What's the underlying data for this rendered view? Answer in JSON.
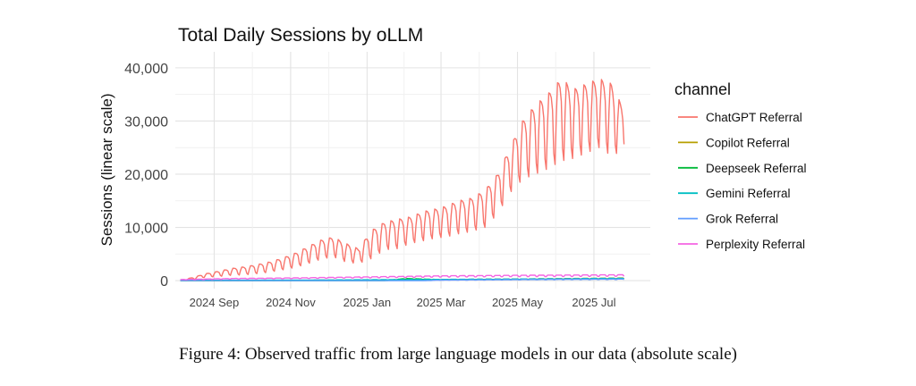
{
  "chart_data": {
    "type": "line",
    "title": "Total Daily Sessions by oLLM",
    "xlabel": "",
    "ylabel": "Sessions (linear scale)",
    "x_type": "date",
    "xlim": [
      "2024-08-01",
      "2025-08-15"
    ],
    "ylim": [
      -1500,
      43000
    ],
    "y_ticks": [
      0,
      10000,
      20000,
      30000,
      40000
    ],
    "y_tick_labels": [
      "0",
      "10,000",
      "20,000",
      "30,000",
      "40,000"
    ],
    "x_ticks": [
      "2024-09-01",
      "2024-11-01",
      "2025-01-01",
      "2025-03-01",
      "2025-05-01",
      "2025-07-01"
    ],
    "x_tick_labels": [
      "2024 Sep",
      "2024 Nov",
      "2025 Jan",
      "2025 Mar",
      "2025 May",
      "2025 Jul"
    ],
    "grid": true,
    "legend_title": "channel",
    "legend_position": "right",
    "series": [
      {
        "name": "ChatGPT Referral",
        "color": "#F8766D",
        "x": [
          "2024-08-05",
          "2024-08-15",
          "2024-08-25",
          "2024-09-05",
          "2024-09-15",
          "2024-09-25",
          "2024-10-05",
          "2024-10-15",
          "2024-10-25",
          "2024-11-05",
          "2024-11-15",
          "2024-11-25",
          "2024-12-05",
          "2024-12-15",
          "2024-12-25",
          "2025-01-05",
          "2025-01-15",
          "2025-01-25",
          "2025-02-05",
          "2025-02-15",
          "2025-02-25",
          "2025-03-05",
          "2025-03-15",
          "2025-03-25",
          "2025-04-05",
          "2025-04-15",
          "2025-04-25",
          "2025-05-05",
          "2025-05-15",
          "2025-05-25",
          "2025-06-05",
          "2025-06-15",
          "2025-06-25",
          "2025-07-05",
          "2025-07-15",
          "2025-07-25"
        ],
        "values": [
          100,
          600,
          1300,
          1800,
          2300,
          2600,
          3000,
          3500,
          4200,
          5200,
          6400,
          7600,
          8200,
          7000,
          6000,
          9500,
          11000,
          11500,
          12000,
          13000,
          13500,
          14000,
          15000,
          15500,
          17000,
          20000,
          25000,
          30000,
          33000,
          35000,
          38000,
          36000,
          37000,
          38000,
          37000,
          32000
        ],
        "envelope_low": [
          0,
          200,
          600,
          800,
          1000,
          1100,
          1300,
          1600,
          2000,
          2500,
          3200,
          4000,
          4500,
          3500,
          3200,
          4200,
          5800,
          6000,
          7000,
          7500,
          8000,
          8200,
          8800,
          9200,
          10000,
          12500,
          16500,
          19000,
          20000,
          21000,
          22500,
          23000,
          24000,
          25000,
          23500,
          24500
        ]
      },
      {
        "name": "Copilot Referral",
        "color": "#B79F00",
        "x": [
          "2024-08-05",
          "2024-11-01",
          "2025-02-01",
          "2025-05-01",
          "2025-07-25"
        ],
        "values": [
          0,
          50,
          150,
          300,
          500
        ]
      },
      {
        "name": "Deepseek Referral",
        "color": "#00BA38",
        "x": [
          "2024-08-05",
          "2025-01-15",
          "2025-02-01",
          "2025-03-01",
          "2025-05-01",
          "2025-07-25"
        ],
        "values": [
          0,
          0,
          400,
          200,
          300,
          350
        ]
      },
      {
        "name": "Gemini Referral",
        "color": "#00BFC4",
        "x": [
          "2024-08-05",
          "2024-11-01",
          "2025-02-01",
          "2025-05-01",
          "2025-07-25"
        ],
        "values": [
          50,
          100,
          200,
          300,
          450
        ]
      },
      {
        "name": "Grok Referral",
        "color": "#619CFF",
        "x": [
          "2024-08-05",
          "2025-02-15",
          "2025-03-01",
          "2025-05-01",
          "2025-07-25"
        ],
        "values": [
          0,
          0,
          100,
          200,
          300
        ]
      },
      {
        "name": "Perplexity Referral",
        "color": "#F564E3",
        "x": [
          "2024-08-05",
          "2024-09-15",
          "2024-11-01",
          "2025-01-01",
          "2025-03-01",
          "2025-05-01",
          "2025-07-25"
        ],
        "values": [
          200,
          400,
          500,
          700,
          900,
          1000,
          1100
        ]
      }
    ]
  },
  "caption": "Figure 4: Observed traffic from large language models in our data (absolute scale)"
}
